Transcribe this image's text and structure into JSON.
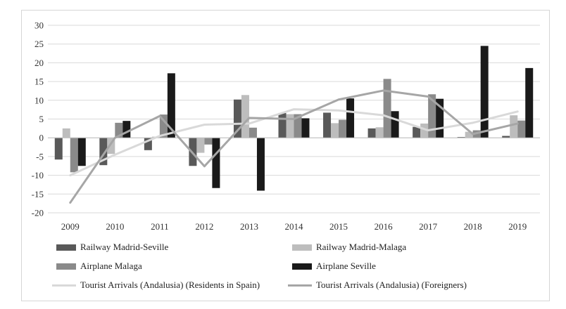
{
  "chart_data": {
    "type": "bar",
    "title": "",
    "xlabel": "",
    "ylabel": "",
    "ylim": [
      -20,
      30
    ],
    "yticks": [
      -20,
      -15,
      -10,
      -5,
      0,
      5,
      10,
      15,
      20,
      25,
      30
    ],
    "categories": [
      "2009",
      "2010",
      "2011",
      "2012",
      "2013",
      "2014",
      "2015",
      "2016",
      "2017",
      "2018",
      "2019"
    ],
    "series": [
      {
        "name": "Railway Madrid-Seville",
        "kind": "bar",
        "color": "#595959",
        "values": [
          -5.8,
          -7.3,
          -3.3,
          -7.5,
          10.2,
          6.6,
          6.7,
          2.5,
          2.9,
          0.2,
          0.5
        ]
      },
      {
        "name": "Railway Madrid-Malaga",
        "kind": "bar",
        "color": "#bdbdbd",
        "values": [
          2.5,
          -4.3,
          0.3,
          -4.0,
          11.4,
          6.3,
          3.9,
          2.8,
          3.8,
          1.6,
          6.0
        ]
      },
      {
        "name": "Airplane Malaga",
        "kind": "bar",
        "color": "#8a8a8a",
        "values": [
          -9.2,
          4.0,
          6.2,
          -1.8,
          2.7,
          6.3,
          4.8,
          15.7,
          11.6,
          2.0,
          4.6
        ]
      },
      {
        "name": "Airplane Seville",
        "kind": "bar",
        "color": "#1a1a1a",
        "values": [
          -7.5,
          4.5,
          17.2,
          -13.4,
          -14.1,
          5.2,
          10.5,
          7.1,
          10.4,
          24.5,
          18.6
        ]
      },
      {
        "name": "Tourist Arrivals (Andalusia) (Residents in Spain)",
        "kind": "line",
        "color": "#d9d9d9",
        "values": [
          -10.0,
          -4.5,
          0.5,
          3.5,
          3.8,
          7.6,
          7.3,
          6.0,
          2.0,
          4.0,
          7.0
        ]
      },
      {
        "name": "Tourist Arrivals (Andalusia) (Foreigners)",
        "kind": "line",
        "color": "#a6a6a6",
        "values": [
          -17.3,
          0.0,
          5.8,
          -7.6,
          5.3,
          5.0,
          10.2,
          12.6,
          11.0,
          1.0,
          3.8
        ]
      }
    ]
  }
}
